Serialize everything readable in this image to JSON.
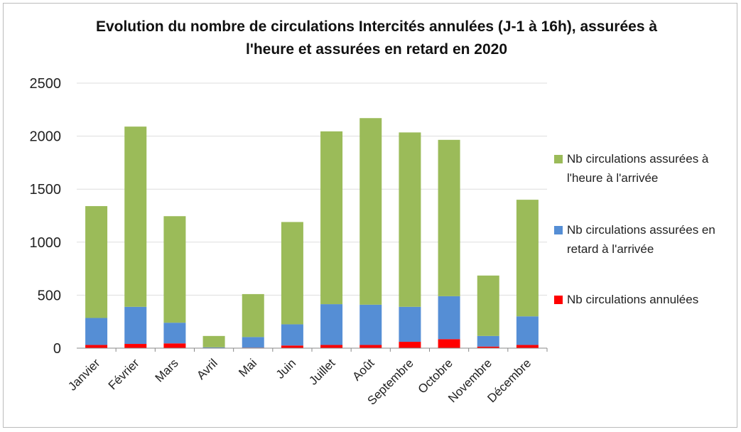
{
  "chart_data": {
    "type": "stacked_bar",
    "title": "Evolution du nombre de circulations Intercités annulées (J-1 à 16h), assurées à l'heure et assurées en retard en 2020",
    "categories": [
      "Janvier",
      "Février",
      "Mars",
      "Avril",
      "Mai",
      "Juin",
      "Juillet",
      "Août",
      "Septembre",
      "Octobre",
      "Novembre",
      "Décembre"
    ],
    "series": [
      {
        "name": "Nb circulations annulées",
        "color": "#ff0000",
        "values": [
          30,
          40,
          45,
          3,
          5,
          25,
          30,
          30,
          60,
          85,
          15,
          30
        ]
      },
      {
        "name": "Nb circulations assurées en retard à l'arrivée",
        "color": "#558ed5",
        "values": [
          255,
          350,
          195,
          5,
          100,
          200,
          385,
          380,
          330,
          405,
          100,
          270
        ]
      },
      {
        "name": "Nb circulations assurées à l'heure à l'arrivée",
        "color": "#9bbb59",
        "values": [
          1055,
          1700,
          1005,
          107,
          405,
          965,
          1630,
          1760,
          1645,
          1475,
          570,
          1100
        ]
      }
    ],
    "ylim": [
      0,
      2500
    ],
    "yticks": [
      0,
      500,
      1000,
      1500,
      2000,
      2500
    ],
    "grid": true,
    "legend": "right"
  }
}
